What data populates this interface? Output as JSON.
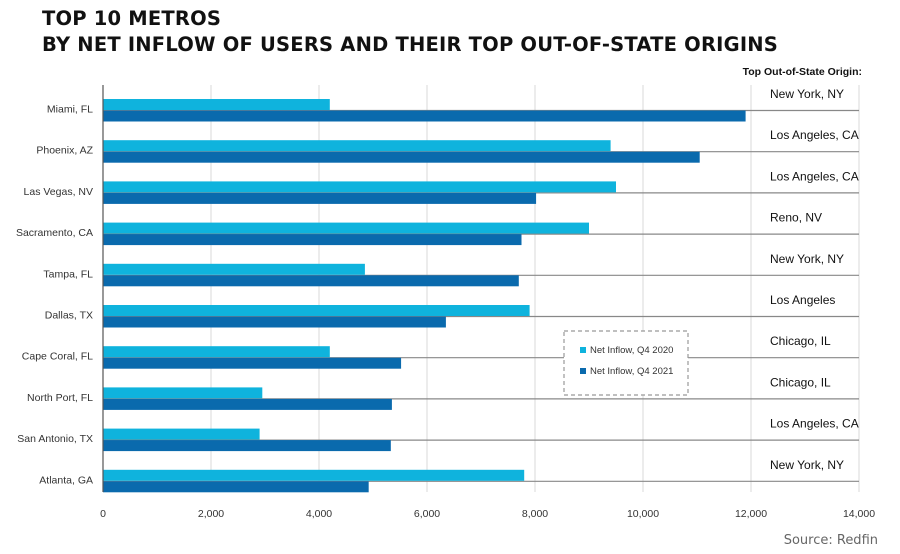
{
  "title_lines": [
    "TOP 10 METROS",
    "BY NET INFLOW OF USERS AND THEIR TOP OUT-OF-STATE ORIGINS"
  ],
  "origin_header": "Top Out-of-State Origin:",
  "source": "Source: Redfin",
  "colors": {
    "series_2020": "#0fb3dd",
    "series_2021": "#0a6aad",
    "grid": "#d9d9d9",
    "axis": "#555555",
    "origin_line": "#888888"
  },
  "chart_data": {
    "type": "bar",
    "orientation": "horizontal",
    "title": "TOP 10 METROS BY NET INFLOW OF USERS AND THEIR TOP OUT-OF-STATE ORIGINS",
    "categories": [
      "Miami, FL",
      "Phoenix, AZ",
      "Las Vegas, NV",
      "Sacramento, CA",
      "Tampa, FL",
      "Dallas, TX",
      "Cape Coral, FL",
      "North Port, FL",
      "San Antonio, TX",
      "Atlanta, GA"
    ],
    "origins": [
      "New York, NY",
      "Los Angeles, CA",
      "Los Angeles, CA",
      "Reno, NV",
      "New York, NY",
      "Los Angeles",
      "Chicago, IL",
      "Chicago, IL",
      "Los Angeles, CA",
      "New York, NY"
    ],
    "series": [
      {
        "name": "Net Inflow, Q4 2020",
        "values": [
          4200,
          9400,
          9500,
          9000,
          4850,
          7900,
          4200,
          2950,
          2900,
          7800
        ]
      },
      {
        "name": "Net Inflow, Q4 2021",
        "values": [
          11900,
          11050,
          8020,
          7750,
          7700,
          6350,
          5520,
          5350,
          5330,
          4920
        ]
      }
    ],
    "xlim": [
      0,
      14000
    ],
    "xticks": [
      0,
      2000,
      4000,
      6000,
      8000,
      10000,
      12000,
      14000
    ],
    "xtick_labels": [
      "0",
      "2,000",
      "4,000",
      "6,000",
      "8,000",
      "10,000",
      "12,000",
      "14,000"
    ],
    "xlabel": "",
    "ylabel": "",
    "grid": true,
    "legend_position": "center-right"
  }
}
